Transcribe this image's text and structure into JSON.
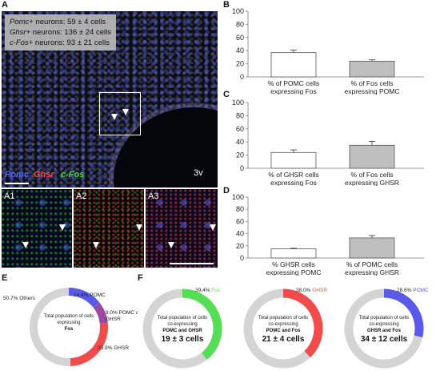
{
  "panel_labels": {
    "A": "A",
    "B": "B",
    "C": "C",
    "D": "D",
    "E": "E",
    "F": "F",
    "A1": "A1",
    "A2": "A2",
    "A3": "A3"
  },
  "legend_box": [
    {
      "gene": "Pomc",
      "text": "+ neurons: 59 ± 4 cells"
    },
    {
      "gene": "Ghsr",
      "text": "+ neurons: 136 ± 24 cells"
    },
    {
      "gene": "c-Fos",
      "text": "+ neurons: 93 ± 21 cells"
    }
  ],
  "channels": [
    {
      "name": "Pomc",
      "color": "#5566ff"
    },
    {
      "name": "Ghsr",
      "color": "#ff4444"
    },
    {
      "name": "c-Fos",
      "color": "#33dd33"
    }
  ],
  "ventricle_label": "3v",
  "colors": {
    "pomc": "#5a5ae8",
    "fos": "#55dd55",
    "ghsr": "#f04c4c",
    "both": "#9a4aa0",
    "others": "#d4d4d4",
    "bar_gray": "#bfbfbf",
    "bar_white": "#ffffff"
  },
  "chart_data": [
    {
      "type": "bar",
      "panel": "B",
      "ylim": [
        0,
        100
      ],
      "yticks": [
        0,
        20,
        40,
        60,
        80,
        100
      ],
      "categories": [
        "% of POMC cells\nexpressing Fos",
        "% of Fos cells\nexpressing POMC"
      ],
      "values": [
        37,
        24
      ],
      "errors": [
        4,
        2
      ],
      "fills": [
        "white",
        "gray"
      ]
    },
    {
      "type": "bar",
      "panel": "C",
      "ylim": [
        0,
        100
      ],
      "yticks": [
        0,
        20,
        40,
        60,
        80,
        100
      ],
      "categories": [
        "% of GHSR cells\nexpressing Fos",
        "% of Fos cells\nexpressing GHSR"
      ],
      "values": [
        24,
        35
      ],
      "errors": [
        4,
        6
      ],
      "fills": [
        "white",
        "gray"
      ]
    },
    {
      "type": "bar",
      "panel": "D",
      "ylim": [
        0,
        100
      ],
      "yticks": [
        0,
        20,
        40,
        60,
        80,
        100
      ],
      "categories": [
        "% GHSR cells\nexpressing POMC",
        "% of POMC cells\nexpressing GHSR"
      ],
      "values": [
        15,
        33
      ],
      "errors": [
        1,
        4
      ],
      "fills": [
        "white",
        "gray"
      ]
    },
    {
      "type": "pie",
      "panel": "E",
      "center_text": [
        "Total population of cells",
        "expressing"
      ],
      "center_bold": "Fos",
      "slices": [
        {
          "label": "14.4% POMC",
          "value": 14.4,
          "color": "#5a5ae8"
        },
        {
          "label": "9.0% POMC and\nGHSR",
          "value": 9.0,
          "color": "#9a4aa0"
        },
        {
          "label": "25.9% GHSR",
          "value": 25.9,
          "color": "#f04c4c"
        },
        {
          "label": "50.7% Others",
          "value": 50.7,
          "color": "#d4d4d4"
        }
      ]
    },
    {
      "type": "pie",
      "panel": "F1",
      "center_text": [
        "Total population of cells",
        "co-expressing"
      ],
      "center_bold": "POMC and GHSR",
      "count": "19 ± 3 cells",
      "slices": [
        {
          "label": "39.4% ",
          "label_colored": "Fos",
          "value": 39.4,
          "color": "#55dd55"
        },
        {
          "label": "",
          "value": 60.6,
          "color": "#d4d4d4"
        }
      ]
    },
    {
      "type": "pie",
      "panel": "F2",
      "center_text": [
        "Total population of cells",
        "co-expressing"
      ],
      "center_bold": "POMC and Fos",
      "count": "21 ± 4 cells",
      "slices": [
        {
          "label": "38.0% ",
          "label_colored": "GHSR",
          "value": 38.0,
          "color": "#f04c4c"
        },
        {
          "label": "",
          "value": 62.0,
          "color": "#d4d4d4"
        }
      ]
    },
    {
      "type": "pie",
      "panel": "F3",
      "center_text": [
        "Total population of cells",
        "co-expressing"
      ],
      "center_bold": "GHSR and Fos",
      "count": "34 ± 12 cells",
      "slices": [
        {
          "label": "28.6% ",
          "label_colored": "POMC",
          "value": 28.6,
          "color": "#5a5ae8"
        },
        {
          "label": "",
          "value": 71.4,
          "color": "#d4d4d4"
        }
      ]
    }
  ]
}
